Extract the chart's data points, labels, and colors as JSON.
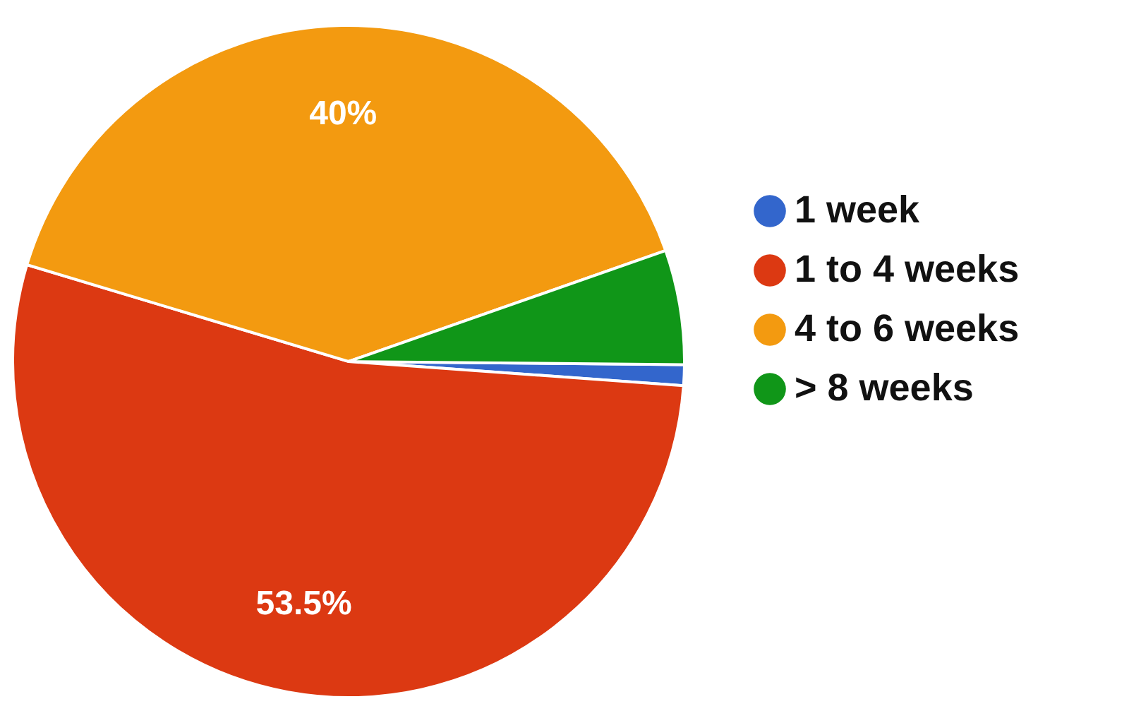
{
  "chart_data": {
    "type": "pie",
    "categories": [
      "1 week",
      "1 to 4 weeks",
      "4 to 6 weeks",
      "> 8 weeks"
    ],
    "values": [
      1,
      53.5,
      40,
      5.5
    ],
    "colors": [
      "#3366cc",
      "#dc3912",
      "#f39a10",
      "#109618"
    ],
    "value_labels": [
      null,
      "53.5%",
      "40%",
      null
    ],
    "legend": "right"
  }
}
